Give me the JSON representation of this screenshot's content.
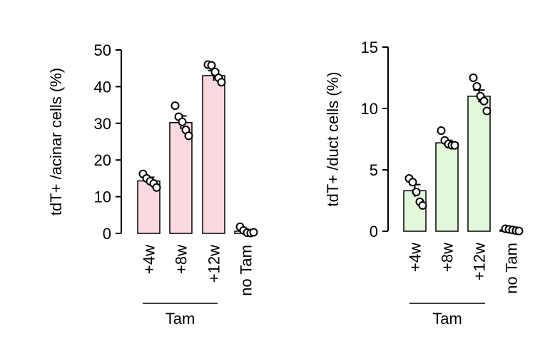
{
  "chart_data": [
    {
      "type": "bar",
      "ylabel": "tdT+ /acinar cells (%)",
      "ylim": [
        0,
        50
      ],
      "yticks": [
        0,
        10,
        20,
        30,
        40,
        50
      ],
      "categories": [
        "+4w",
        "+8w",
        "+12w",
        "no Tam"
      ],
      "values": [
        14.3,
        30.2,
        43.0,
        0.6
      ],
      "errors": [
        1.0,
        1.8,
        1.4,
        0.3
      ],
      "points": [
        [
          16.2,
          15.0,
          14.2,
          13.6,
          12.5
        ],
        [
          34.8,
          31.8,
          30.4,
          28.2,
          26.6
        ],
        [
          46.0,
          45.8,
          44.0,
          42.4,
          41.2
        ],
        [
          1.8,
          0.8,
          0.2,
          0.1,
          0.3
        ]
      ],
      "bar_color": "#fadadf",
      "group_label": "Tam",
      "group_span": [
        "+4w",
        "+12w"
      ]
    },
    {
      "type": "bar",
      "ylabel": "tdT+ /duct cells (%)",
      "ylim": [
        0,
        15
      ],
      "yticks": [
        0,
        5,
        10,
        15
      ],
      "categories": [
        "+4w",
        "+8w",
        "+12w",
        "no Tam"
      ],
      "values": [
        3.3,
        7.2,
        11.0,
        0.1
      ],
      "errors": [
        0.5,
        0.2,
        0.5,
        0.05
      ],
      "points": [
        [
          4.3,
          4.0,
          3.2,
          2.4,
          2.1
        ],
        [
          8.2,
          7.4,
          7.1,
          7.0,
          7.0
        ],
        [
          12.5,
          11.8,
          11.0,
          10.6,
          9.8
        ],
        [
          0.2,
          0.15,
          0.1,
          0.05,
          0.02
        ]
      ],
      "bar_color": "#e3f8d9",
      "group_label": "Tam",
      "group_span": [
        "+4w",
        "+12w"
      ]
    }
  ]
}
